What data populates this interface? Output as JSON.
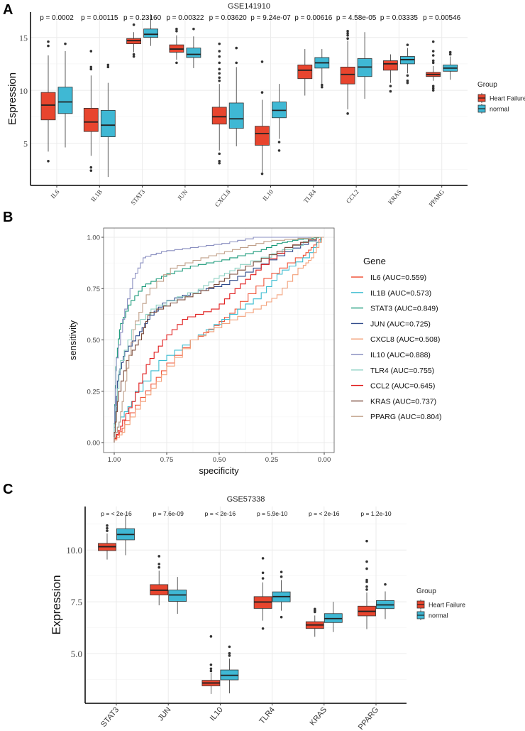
{
  "panels": {
    "a": "A",
    "b": "B",
    "c": "C"
  },
  "chart_data": [
    {
      "type": "box",
      "title": "GSE141910",
      "ylabel": "Espression",
      "ylim": [
        1,
        17.4
      ],
      "yticks": [
        5,
        10,
        15
      ],
      "grid": true,
      "legend": {
        "title": "Group",
        "placement": "right",
        "entries": [
          "Heart Failure",
          "normal"
        ]
      },
      "colors": {
        "Heart Failure": "#e8452e",
        "normal": "#3fb8d4"
      },
      "categories": [
        "IL6",
        "IL1B",
        "STAT3",
        "JUN",
        "CXCL8",
        "IL10",
        "TLR4",
        "CCL2",
        "KRAS",
        "PPARG"
      ],
      "pvalues": [
        "p = 0.0002",
        "p = 0.00115",
        "p = 0.23160",
        "p = 0.00322",
        "p = 0.03620",
        "p = 9.24e-07",
        "p = 0.00616",
        "p = 4.58e-05",
        "p = 0.03335",
        "p = 0.00546"
      ],
      "series": [
        {
          "name": "Heart Failure",
          "boxes": [
            {
              "q1": 7.2,
              "median": 8.6,
              "q3": 9.8,
              "low": 4.2,
              "high": 13.3,
              "outliers": [
                14.6,
                14.2,
                3.3
              ]
            },
            {
              "q1": 6.1,
              "median": 7.0,
              "q3": 8.3,
              "low": 3.8,
              "high": 11.4,
              "outliers": [
                13.7,
                12.2,
                12.0,
                2.7,
                2.4
              ]
            },
            {
              "q1": 14.4,
              "median": 14.7,
              "q3": 14.9,
              "low": 13.6,
              "high": 15.5,
              "outliers": [
                16.2,
                13.4,
                13.2
              ]
            },
            {
              "q1": 13.6,
              "median": 13.9,
              "q3": 14.3,
              "low": 12.9,
              "high": 15.2,
              "outliers": [
                15.8,
                15.6,
                12.6
              ]
            },
            {
              "q1": 6.8,
              "median": 7.5,
              "q3": 8.4,
              "low": 4.3,
              "high": 10.6,
              "outliers": [
                14.4,
                13.7,
                13.2,
                12.6,
                12.0,
                11.6,
                11.2,
                10.9,
                4.0,
                3.3,
                3.1
              ]
            },
            {
              "q1": 4.8,
              "median": 5.9,
              "q3": 6.6,
              "low": 2.2,
              "high": 9.1,
              "outliers": [
                12.7,
                9.8,
                2.1
              ]
            },
            {
              "q1": 11.1,
              "median": 11.9,
              "q3": 12.4,
              "low": 9.5,
              "high": 13.9,
              "outliers": []
            },
            {
              "q1": 10.6,
              "median": 11.5,
              "q3": 12.2,
              "low": 8.2,
              "high": 14.7,
              "outliers": [
                15.6,
                15.4,
                15.2,
                14.9,
                7.8
              ]
            },
            {
              "q1": 11.9,
              "median": 12.5,
              "q3": 12.8,
              "low": 10.7,
              "high": 13.4,
              "outliers": [
                10.4,
                9.9
              ]
            },
            {
              "q1": 11.3,
              "median": 11.5,
              "q3": 11.7,
              "low": 10.9,
              "high": 12.3,
              "outliers": [
                14.6,
                13.7,
                13.3,
                12.8,
                12.6,
                10.4,
                10.2,
                10.0
              ]
            }
          ]
        },
        {
          "name": "normal",
          "boxes": [
            {
              "q1": 7.8,
              "median": 8.9,
              "q3": 10.3,
              "low": 4.6,
              "high": 13.7,
              "outliers": [
                14.4
              ]
            },
            {
              "q1": 5.6,
              "median": 6.7,
              "q3": 8.1,
              "low": 1.8,
              "high": 10.7,
              "outliers": [
                12.4,
                12.2
              ]
            },
            {
              "q1": 15.0,
              "median": 15.3,
              "q3": 15.8,
              "low": 14.2,
              "high": 17.2,
              "outliers": []
            },
            {
              "q1": 13.1,
              "median": 13.4,
              "q3": 14.0,
              "low": 12.1,
              "high": 15.1,
              "outliers": [
                15.8
              ]
            },
            {
              "q1": 6.4,
              "median": 7.3,
              "q3": 8.8,
              "low": 4.7,
              "high": 12.2,
              "outliers": [
                14.0,
                12.6
              ]
            },
            {
              "q1": 7.4,
              "median": 8.1,
              "q3": 8.9,
              "low": 5.4,
              "high": 10.6,
              "outliers": [
                5.1,
                4.3
              ]
            },
            {
              "q1": 12.1,
              "median": 12.6,
              "q3": 13.1,
              "low": 10.6,
              "high": 13.9,
              "outliers": [
                10.5,
                10.3
              ]
            },
            {
              "q1": 11.3,
              "median": 12.2,
              "q3": 13.0,
              "low": 9.2,
              "high": 15.5,
              "outliers": []
            },
            {
              "q1": 12.5,
              "median": 12.9,
              "q3": 13.2,
              "low": 11.6,
              "high": 14.0,
              "outliers": [
                14.3,
                11.4,
                10.9,
                10.7
              ]
            },
            {
              "q1": 11.8,
              "median": 12.1,
              "q3": 12.4,
              "low": 11.0,
              "high": 13.2,
              "outliers": [
                13.6,
                13.4
              ]
            }
          ]
        }
      ]
    },
    {
      "type": "line",
      "xlabel": "specificity",
      "ylabel": "sensitivity",
      "xlim": [
        1,
        0
      ],
      "ylim": [
        0,
        1
      ],
      "xticks": [
        "1.00",
        "0.75",
        "0.50",
        "0.25",
        "0.00"
      ],
      "yticks": [
        "0.00",
        "0.25",
        "0.50",
        "0.75",
        "1.00"
      ],
      "grid": true,
      "legend": {
        "title": "Gene",
        "placement": "right"
      },
      "series": [
        {
          "name": "IL6 (AUC=0.559)",
          "color": "#f0553a",
          "points": [
            [
              1,
              0
            ],
            [
              0.95,
              0.07
            ],
            [
              0.85,
              0.22
            ],
            [
              0.75,
              0.35
            ],
            [
              0.6,
              0.5
            ],
            [
              0.5,
              0.57
            ],
            [
              0.4,
              0.65
            ],
            [
              0.25,
              0.8
            ],
            [
              0.1,
              0.9
            ],
            [
              0.05,
              0.95
            ],
            [
              0,
              1
            ]
          ]
        },
        {
          "name": "IL1B (AUC=0.573)",
          "color": "#3bbcd0",
          "points": [
            [
              1,
              0
            ],
            [
              0.97,
              0.1
            ],
            [
              0.9,
              0.2
            ],
            [
              0.75,
              0.4
            ],
            [
              0.6,
              0.5
            ],
            [
              0.45,
              0.6
            ],
            [
              0.3,
              0.7
            ],
            [
              0.2,
              0.82
            ],
            [
              0.07,
              0.9
            ],
            [
              0,
              1
            ]
          ]
        },
        {
          "name": "STAT3 (AUC=0.849)",
          "color": "#1a9a7a",
          "points": [
            [
              1,
              0
            ],
            [
              0.99,
              0.37
            ],
            [
              0.97,
              0.55
            ],
            [
              0.92,
              0.67
            ],
            [
              0.85,
              0.76
            ],
            [
              0.75,
              0.81
            ],
            [
              0.6,
              0.86
            ],
            [
              0.45,
              0.89
            ],
            [
              0.3,
              0.93
            ],
            [
              0.2,
              0.97
            ],
            [
              0.1,
              0.99
            ],
            [
              0,
              1
            ]
          ]
        },
        {
          "name": "JUN (AUC=0.725)",
          "color": "#2f4a8a",
          "points": [
            [
              1,
              0
            ],
            [
              0.98,
              0.3
            ],
            [
              0.95,
              0.42
            ],
            [
              0.88,
              0.52
            ],
            [
              0.83,
              0.6
            ],
            [
              0.75,
              0.68
            ],
            [
              0.6,
              0.73
            ],
            [
              0.45,
              0.77
            ],
            [
              0.3,
              0.85
            ],
            [
              0.15,
              0.93
            ],
            [
              0,
              1
            ]
          ]
        },
        {
          "name": "CXCL8 (AUC=0.508)",
          "color": "#f3a07a",
          "points": [
            [
              1,
              0
            ],
            [
              0.95,
              0.05
            ],
            [
              0.85,
              0.2
            ],
            [
              0.75,
              0.33
            ],
            [
              0.6,
              0.5
            ],
            [
              0.45,
              0.58
            ],
            [
              0.3,
              0.65
            ],
            [
              0.2,
              0.72
            ],
            [
              0.1,
              0.85
            ],
            [
              0.05,
              0.9
            ],
            [
              0,
              1
            ]
          ]
        },
        {
          "name": "IL10 (AUC=0.888)",
          "color": "#8a8fc0",
          "points": [
            [
              1,
              0
            ],
            [
              0.99,
              0.35
            ],
            [
              0.95,
              0.6
            ],
            [
              0.9,
              0.8
            ],
            [
              0.85,
              0.9
            ],
            [
              0.75,
              0.93
            ],
            [
              0.6,
              0.95
            ],
            [
              0.45,
              0.97
            ],
            [
              0.3,
              1
            ],
            [
              0,
              1
            ]
          ]
        },
        {
          "name": "TLR4 (AUC=0.755)",
          "color": "#8fd2c4",
          "points": [
            [
              1,
              0
            ],
            [
              0.97,
              0.35
            ],
            [
              0.9,
              0.55
            ],
            [
              0.8,
              0.65
            ],
            [
              0.6,
              0.73
            ],
            [
              0.5,
              0.8
            ],
            [
              0.4,
              0.85
            ],
            [
              0.2,
              0.92
            ],
            [
              0,
              1
            ]
          ]
        },
        {
          "name": "CCL2 (AUC=0.645)",
          "color": "#e01b1b",
          "points": [
            [
              1,
              0
            ],
            [
              0.96,
              0.08
            ],
            [
              0.9,
              0.2
            ],
            [
              0.83,
              0.38
            ],
            [
              0.75,
              0.5
            ],
            [
              0.65,
              0.6
            ],
            [
              0.5,
              0.65
            ],
            [
              0.4,
              0.75
            ],
            [
              0.3,
              0.84
            ],
            [
              0.15,
              0.95
            ],
            [
              0,
              1
            ]
          ]
        },
        {
          "name": "KRAS (AUC=0.737)",
          "color": "#7a4a3a",
          "points": [
            [
              1,
              0
            ],
            [
              0.98,
              0.2
            ],
            [
              0.93,
              0.4
            ],
            [
              0.87,
              0.5
            ],
            [
              0.83,
              0.62
            ],
            [
              0.7,
              0.68
            ],
            [
              0.55,
              0.74
            ],
            [
              0.45,
              0.8
            ],
            [
              0.3,
              0.88
            ],
            [
              0.15,
              0.95
            ],
            [
              0,
              1
            ]
          ]
        },
        {
          "name": "PPARG (AUC=0.804)",
          "color": "#c0a08a",
          "points": [
            [
              1,
              0
            ],
            [
              0.97,
              0.1
            ],
            [
              0.94,
              0.3
            ],
            [
              0.9,
              0.55
            ],
            [
              0.83,
              0.72
            ],
            [
              0.7,
              0.85
            ],
            [
              0.55,
              0.9
            ],
            [
              0.4,
              0.94
            ],
            [
              0.25,
              0.98
            ],
            [
              0,
              1
            ]
          ]
        }
      ]
    },
    {
      "type": "box",
      "title": "GSE57338",
      "ylabel": "Expression",
      "ylim": [
        2.6,
        12.1
      ],
      "yticks": [
        "5.0",
        "7.5",
        "10.0"
      ],
      "grid": true,
      "legend": {
        "title": "Group",
        "placement": "right",
        "entries": [
          "Heart Failure",
          "normal"
        ]
      },
      "colors": {
        "Heart Failure": "#e8452e",
        "normal": "#3fb8d4"
      },
      "categories": [
        "STAT3",
        "JUN",
        "IL10",
        "TLR4",
        "KRAS",
        "PPARG"
      ],
      "pvalues": [
        "p = < 2e-16",
        "p = 7.6e-09",
        "p = < 2e-16",
        "p = 5.9e-10",
        "p = < 2e-16",
        "p = 1.2e-10"
      ],
      "series": [
        {
          "name": "Heart Failure",
          "boxes": [
            {
              "q1": 9.97,
              "median": 10.16,
              "q3": 10.32,
              "low": 9.54,
              "high": 10.8,
              "outliers": [
                11.18,
                11.05,
                10.93
              ]
            },
            {
              "q1": 7.83,
              "median": 8.06,
              "q3": 8.33,
              "low": 7.33,
              "high": 9.0,
              "outliers": [
                9.7,
                9.32,
                9.16
              ]
            },
            {
              "q1": 3.44,
              "median": 3.58,
              "q3": 3.71,
              "low": 3.05,
              "high": 4.08,
              "outliers": [
                5.83,
                4.46,
                4.27,
                4.16
              ]
            },
            {
              "q1": 7.18,
              "median": 7.49,
              "q3": 7.75,
              "low": 6.59,
              "high": 8.44,
              "outliers": [
                9.6,
                8.9,
                8.63,
                6.21
              ]
            },
            {
              "q1": 6.21,
              "median": 6.38,
              "q3": 6.54,
              "low": 5.81,
              "high": 6.84,
              "outliers": [
                7.15,
                7.07,
                7.01
              ]
            },
            {
              "q1": 6.82,
              "median": 7.04,
              "q3": 7.29,
              "low": 6.18,
              "high": 7.95,
              "outliers": [
                10.43,
                9.44,
                9.1,
                8.55,
                8.46,
                8.23,
                8.09
              ]
            }
          ]
        },
        {
          "name": "normal",
          "boxes": [
            {
              "q1": 10.49,
              "median": 10.75,
              "q3": 11.03,
              "low": 9.75,
              "high": 11.7,
              "outliers": []
            },
            {
              "q1": 7.52,
              "median": 7.83,
              "q3": 8.07,
              "low": 6.92,
              "high": 8.7,
              "outliers": []
            },
            {
              "q1": 3.73,
              "median": 3.95,
              "q3": 4.21,
              "low": 3.08,
              "high": 4.76,
              "outliers": [
                5.33,
                5.01,
                4.9
              ]
            },
            {
              "q1": 7.5,
              "median": 7.75,
              "q3": 7.98,
              "low": 7.07,
              "high": 8.55,
              "outliers": [
                8.94,
                8.71,
                6.76
              ]
            },
            {
              "q1": 6.5,
              "median": 6.69,
              "q3": 6.93,
              "low": 6.04,
              "high": 7.5,
              "outliers": []
            },
            {
              "q1": 7.17,
              "median": 7.35,
              "q3": 7.56,
              "low": 6.67,
              "high": 8.0,
              "outliers": [
                8.34
              ]
            }
          ]
        }
      ]
    }
  ]
}
